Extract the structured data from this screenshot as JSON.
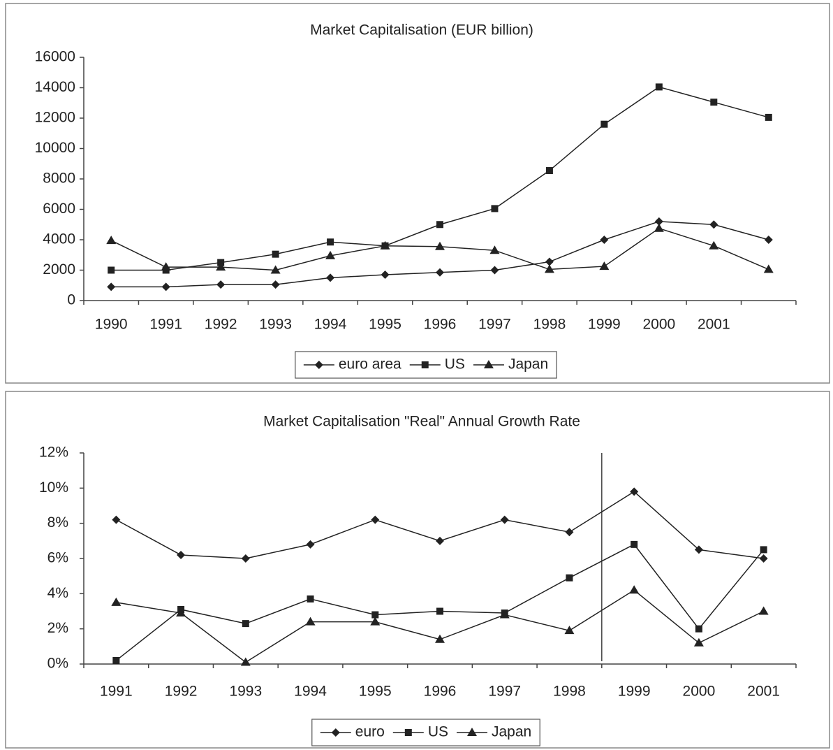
{
  "chart_data": [
    {
      "type": "line",
      "title": "Market Capitalisation (EUR billion)",
      "categories": [
        "1990",
        "1991",
        "1992",
        "1993",
        "1994",
        "1995",
        "1996",
        "1997",
        "1998",
        "1999",
        "2000",
        "2001",
        null
      ],
      "series": [
        {
          "name": "euro area",
          "color": "#222222",
          "marker": "diamond",
          "values": [
            900,
            900,
            1050,
            1050,
            1500,
            1700,
            1850,
            2000,
            2550,
            4000,
            5200,
            5000,
            4000
          ]
        },
        {
          "name": "US",
          "color": "#222222",
          "marker": "square",
          "values": [
            2000,
            2000,
            2500,
            3050,
            3850,
            3600,
            5000,
            6050,
            8550,
            11600,
            14050,
            13050,
            12050
          ]
        },
        {
          "name": "Japan",
          "color": "#222222",
          "marker": "triangle",
          "values": [
            3950,
            2200,
            2200,
            2000,
            2950,
            3600,
            3550,
            3300,
            2050,
            2250,
            4750,
            3600,
            2050
          ]
        }
      ],
      "ylim": [
        0,
        16000
      ],
      "yticks": [
        0,
        2000,
        4000,
        6000,
        8000,
        10000,
        12000,
        14000,
        16000
      ],
      "legend": "bottom"
    },
    {
      "type": "line",
      "title": "Market Capitalisation \"Real\" Annual Growth Rate",
      "categories": [
        "1991",
        "1992",
        "1993",
        "1994",
        "1995",
        "1996",
        "1997",
        "1998",
        "1999",
        "2000",
        "2001"
      ],
      "series": [
        {
          "name": "euro",
          "color": "#222222",
          "marker": "diamond",
          "values": [
            8.2,
            6.2,
            6.0,
            6.8,
            8.2,
            7.0,
            8.2,
            7.5,
            9.8,
            6.5,
            6.0
          ]
        },
        {
          "name": "US",
          "color": "#222222",
          "marker": "square",
          "values": [
            0.2,
            3.1,
            2.3,
            3.7,
            2.8,
            3.0,
            2.9,
            4.9,
            6.8,
            2.0,
            6.5
          ]
        },
        {
          "name": "Japan",
          "color": "#222222",
          "marker": "triangle",
          "values": [
            3.5,
            2.9,
            0.1,
            2.4,
            2.4,
            1.4,
            2.8,
            1.9,
            4.2,
            1.2,
            3.0
          ]
        }
      ],
      "ylim": [
        0,
        12
      ],
      "yticks": [
        {
          "value": 0,
          "label": "0%"
        },
        {
          "value": 2,
          "label": "2%"
        },
        {
          "value": 4,
          "label": "4%"
        },
        {
          "value": 6,
          "label": "6%"
        },
        {
          "value": 8,
          "label": "8%"
        },
        {
          "value": 10,
          "label": "10%"
        },
        {
          "value": 12,
          "label": "12%"
        }
      ],
      "legend": "bottom"
    }
  ]
}
